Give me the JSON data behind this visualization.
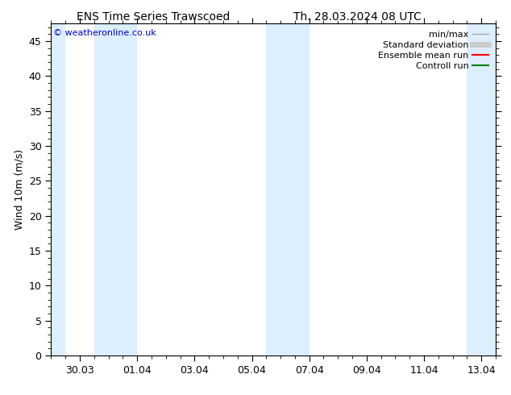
{
  "title_left": "ENS Time Series Trawscoed",
  "title_right": "Th. 28.03.2024 08 UTC",
  "ylabel": "Wind 10m (m/s)",
  "watermark": "© weatheronline.co.uk",
  "ylim": [
    0,
    47.5
  ],
  "yticks": [
    0,
    5,
    10,
    15,
    20,
    25,
    30,
    35,
    40,
    45
  ],
  "xtick_labels": [
    "30.03",
    "01.04",
    "03.04",
    "05.04",
    "07.04",
    "09.04",
    "11.04",
    "13.04"
  ],
  "xtick_positions": [
    1.0,
    3.0,
    5.0,
    7.0,
    9.0,
    11.0,
    13.0,
    15.0
  ],
  "x_min": 0.0,
  "x_max": 15.5,
  "shaded_bands": [
    {
      "xstart": 0.0,
      "xend": 0.5,
      "color": "#ddeeff"
    },
    {
      "xstart": 1.5,
      "xend": 3.0,
      "color": "#ddeeff"
    },
    {
      "xstart": 7.5,
      "xend": 9.0,
      "color": "#ddeeff"
    },
    {
      "xstart": 14.5,
      "xend": 15.5,
      "color": "#ddeeff"
    }
  ],
  "legend_entries": [
    {
      "label": "min/max",
      "color": "#aaaaaa",
      "lw": 1.0
    },
    {
      "label": "Standard deviation",
      "color": "#cccccc",
      "lw": 5
    },
    {
      "label": "Ensemble mean run",
      "color": "#ff0000",
      "lw": 1.5
    },
    {
      "label": "Controll run",
      "color": "#008000",
      "lw": 1.5
    }
  ],
  "background_color": "#ffffff",
  "plot_bg_color": "#ffffff",
  "border_color": "#000000",
  "tick_color": "#000000",
  "font_color": "#000000",
  "title_fontsize": 10,
  "label_fontsize": 9,
  "tick_fontsize": 9,
  "watermark_color": "#0000cc",
  "watermark_fontsize": 8,
  "legend_fontsize": 8
}
